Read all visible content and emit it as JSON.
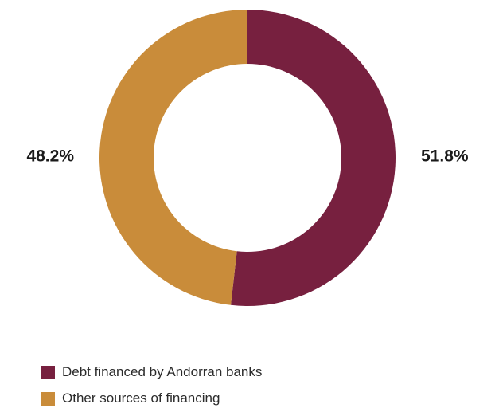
{
  "chart_data": {
    "type": "pie",
    "title": "",
    "donut": true,
    "slices": [
      {
        "label": "Debt financed by Andorran banks",
        "value": 51.8,
        "display": "51.8%",
        "color": "#77203f"
      },
      {
        "label": "Other sources of financing",
        "value": 48.2,
        "display": "48.2%",
        "color": "#c98c3a"
      }
    ],
    "legend_position": "bottom-left"
  }
}
